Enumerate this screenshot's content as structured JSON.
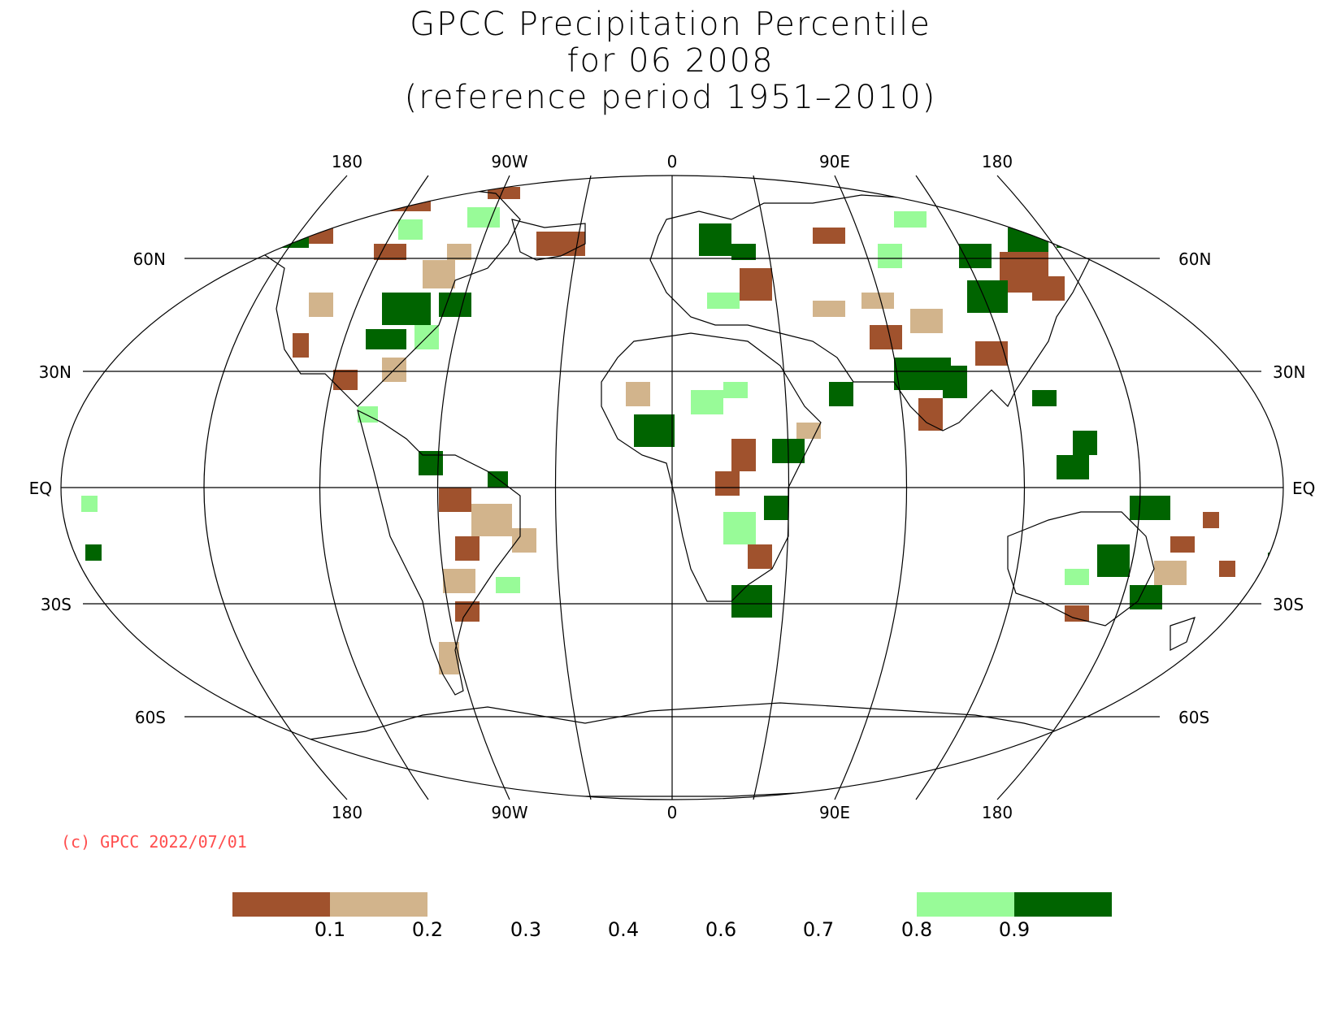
{
  "title": {
    "line1": "GPCC Precipitation Percentile",
    "line2": "for 06 2008",
    "line3": "(reference period 1951–2010)"
  },
  "longitude_labels": [
    "180",
    "90W",
    "0",
    "90E",
    "180"
  ],
  "latitude_labels": [
    "60N",
    "30N",
    "EQ",
    "30S",
    "60S"
  ],
  "copyright": "(c) GPCC 2022/07/01",
  "legend": {
    "ticks": [
      "0.1",
      "0.2",
      "0.3",
      "0.4",
      "0.6",
      "0.7",
      "0.8",
      "0.9"
    ],
    "bins": [
      {
        "range": "<0.1",
        "color": "#a0522d"
      },
      {
        "range": "0.1-0.2",
        "color": "#d2b48c"
      },
      {
        "range": "0.2-0.8",
        "color": "#ffffff"
      },
      {
        "range": "0.8-0.9",
        "color": "#98fb98"
      },
      {
        "range": ">0.9",
        "color": "#006400"
      }
    ]
  }
}
